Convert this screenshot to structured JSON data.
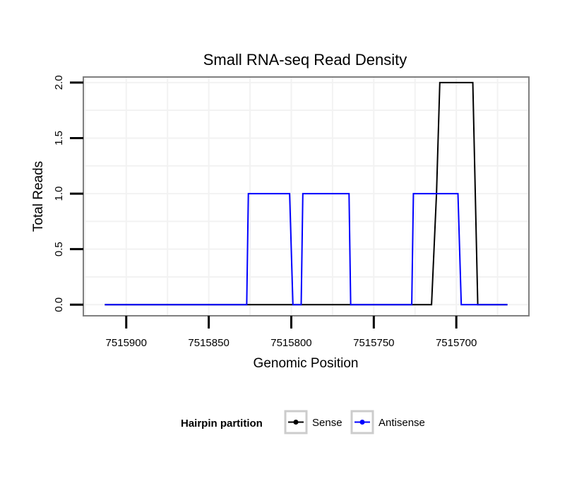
{
  "chart_data": {
    "type": "line",
    "title": "Small RNA-seq Read Density",
    "xlabel": "Genomic Position",
    "ylabel": "Total Reads",
    "x_reversed": true,
    "xlim": [
      7515926,
      7515656
    ],
    "ylim": [
      -0.1,
      2.05
    ],
    "x_ticks": [
      7515900,
      7515850,
      7515800,
      7515750,
      7515700
    ],
    "x_tick_labels": [
      "7515900",
      "7515850",
      "7515800",
      "7515750",
      "7515700"
    ],
    "y_ticks": [
      0.0,
      0.5,
      1.0,
      1.5,
      2.0
    ],
    "y_tick_labels": [
      "0.0",
      "0.5",
      "1.0",
      "1.5",
      "2.0"
    ],
    "grid": true,
    "legend_title": "Hairpin partition",
    "legend_position": "bottom",
    "series": [
      {
        "name": "Sense",
        "color": "#000000",
        "x": [
          7515913,
          7515715,
          7515712,
          7515710,
          7515690,
          7515687,
          7515669
        ],
        "y": [
          0,
          0,
          1,
          2,
          2,
          0,
          0
        ]
      },
      {
        "name": "Antisense",
        "color": "#0000ff",
        "x": [
          7515913,
          7515827,
          7515826,
          7515801,
          7515799,
          7515794,
          7515793,
          7515765,
          7515764,
          7515727,
          7515726,
          7515699,
          7515697,
          7515689,
          7515669
        ],
        "y": [
          0,
          0,
          1,
          1,
          0,
          0,
          1,
          1,
          0,
          0,
          1,
          1,
          0,
          0,
          0
        ]
      }
    ]
  }
}
